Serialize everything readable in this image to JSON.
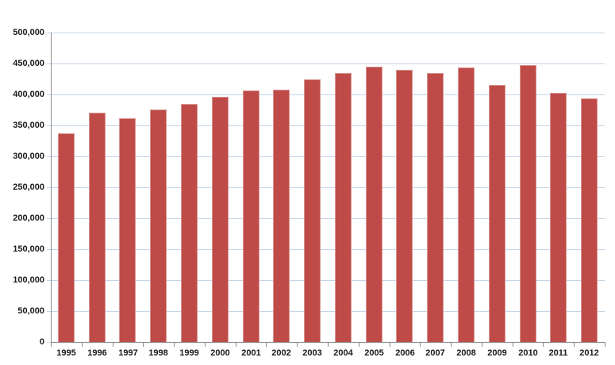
{
  "chart_data": {
    "type": "bar",
    "title": "",
    "xlabel": "",
    "ylabel": "",
    "categories": [
      "1995",
      "1996",
      "1997",
      "1998",
      "1999",
      "2000",
      "2001",
      "2002",
      "2003",
      "2004",
      "2005",
      "2006",
      "2007",
      "2008",
      "2009",
      "2010",
      "2011",
      "2012"
    ],
    "values": [
      337000,
      370000,
      362000,
      375000,
      385000,
      396000,
      406000,
      408000,
      424000,
      435000,
      445000,
      440000,
      434000,
      444000,
      415000,
      447000,
      403000,
      393000
    ],
    "ylim": [
      0,
      500000
    ],
    "ytick_interval": 50000,
    "ytick_labels": [
      "0",
      "50,000",
      "100,000",
      "150,000",
      "200,000",
      "250,000",
      "300,000",
      "350,000",
      "400,000",
      "450,000",
      "500,000"
    ],
    "grid": "horizontal",
    "legend": "none"
  },
  "colors": {
    "bar_fill": "#be4b48",
    "bar_border": "#d99694",
    "gridline": "#c6d5e6",
    "axis_line": "#8c8c8c",
    "tick_label": "#1a1a1a",
    "background": "#ffffff"
  }
}
